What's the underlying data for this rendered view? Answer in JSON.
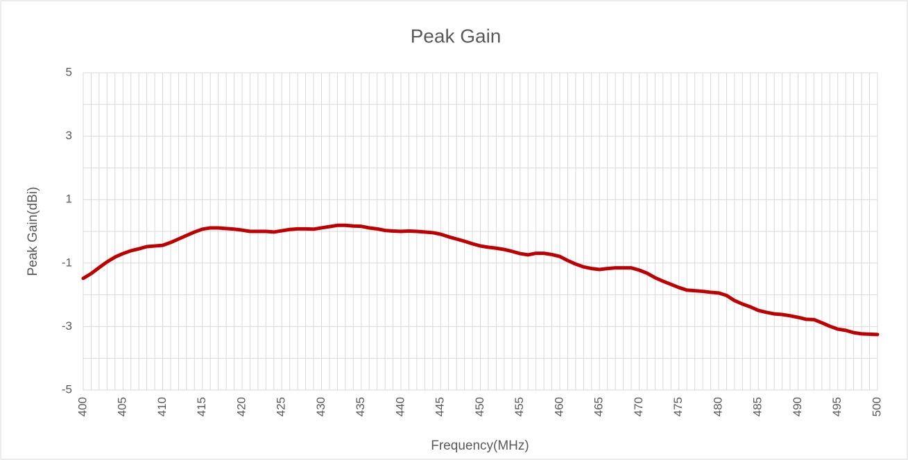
{
  "chart_data": {
    "type": "line",
    "title": "Peak Gain",
    "x_label": "Frequency(MHz)",
    "y_label": "Peak Gain(dBi)",
    "x": [
      400,
      401,
      402,
      403,
      404,
      405,
      406,
      407,
      408,
      409,
      410,
      411,
      412,
      413,
      414,
      415,
      416,
      417,
      418,
      419,
      420,
      421,
      422,
      423,
      424,
      425,
      426,
      427,
      428,
      429,
      430,
      431,
      432,
      433,
      434,
      435,
      436,
      437,
      438,
      439,
      440,
      441,
      442,
      443,
      444,
      445,
      446,
      447,
      448,
      449,
      450,
      451,
      452,
      453,
      454,
      455,
      456,
      457,
      458,
      459,
      460,
      461,
      462,
      463,
      464,
      465,
      466,
      467,
      468,
      469,
      470,
      471,
      472,
      473,
      474,
      475,
      476,
      477,
      478,
      479,
      480,
      481,
      482,
      483,
      484,
      485,
      486,
      487,
      488,
      489,
      490,
      491,
      492,
      493,
      494,
      495,
      496,
      497,
      498,
      499,
      500
    ],
    "series": [
      {
        "name": "Peak Gain",
        "color": "#c00000",
        "values": [
          -1.48,
          -1.33,
          -1.14,
          -0.96,
          -0.81,
          -0.7,
          -0.61,
          -0.55,
          -0.48,
          -0.46,
          -0.44,
          -0.35,
          -0.24,
          -0.13,
          -0.02,
          0.07,
          0.11,
          0.11,
          0.09,
          0.07,
          0.04,
          0.0,
          0.0,
          0.0,
          -0.02,
          0.02,
          0.06,
          0.08,
          0.08,
          0.07,
          0.11,
          0.15,
          0.19,
          0.19,
          0.17,
          0.16,
          0.11,
          0.08,
          0.03,
          0.01,
          0.0,
          0.01,
          0.0,
          -0.02,
          -0.04,
          -0.09,
          -0.17,
          -0.24,
          -0.31,
          -0.39,
          -0.46,
          -0.5,
          -0.53,
          -0.57,
          -0.63,
          -0.7,
          -0.74,
          -0.69,
          -0.69,
          -0.73,
          -0.79,
          -0.92,
          -1.03,
          -1.12,
          -1.17,
          -1.2,
          -1.17,
          -1.15,
          -1.15,
          -1.15,
          -1.22,
          -1.32,
          -1.46,
          -1.57,
          -1.67,
          -1.77,
          -1.85,
          -1.87,
          -1.89,
          -1.92,
          -1.94,
          -2.02,
          -2.18,
          -2.29,
          -2.38,
          -2.49,
          -2.55,
          -2.6,
          -2.62,
          -2.66,
          -2.71,
          -2.77,
          -2.78,
          -2.88,
          -2.99,
          -3.08,
          -3.12,
          -3.19,
          -3.23,
          -3.24,
          -3.25
        ]
      }
    ],
    "xlim": [
      400,
      500
    ],
    "xticks": [
      400,
      405,
      410,
      415,
      420,
      425,
      430,
      435,
      440,
      445,
      450,
      455,
      460,
      465,
      470,
      475,
      480,
      485,
      490,
      495,
      500
    ],
    "ylim": [
      -5,
      5
    ],
    "yticks": [
      -5,
      -3,
      -1,
      1,
      3,
      5
    ],
    "ygrid_minor": [
      -4,
      -2,
      0,
      2,
      4
    ],
    "grid": true,
    "xgrid_at_points": true,
    "legend": false
  }
}
